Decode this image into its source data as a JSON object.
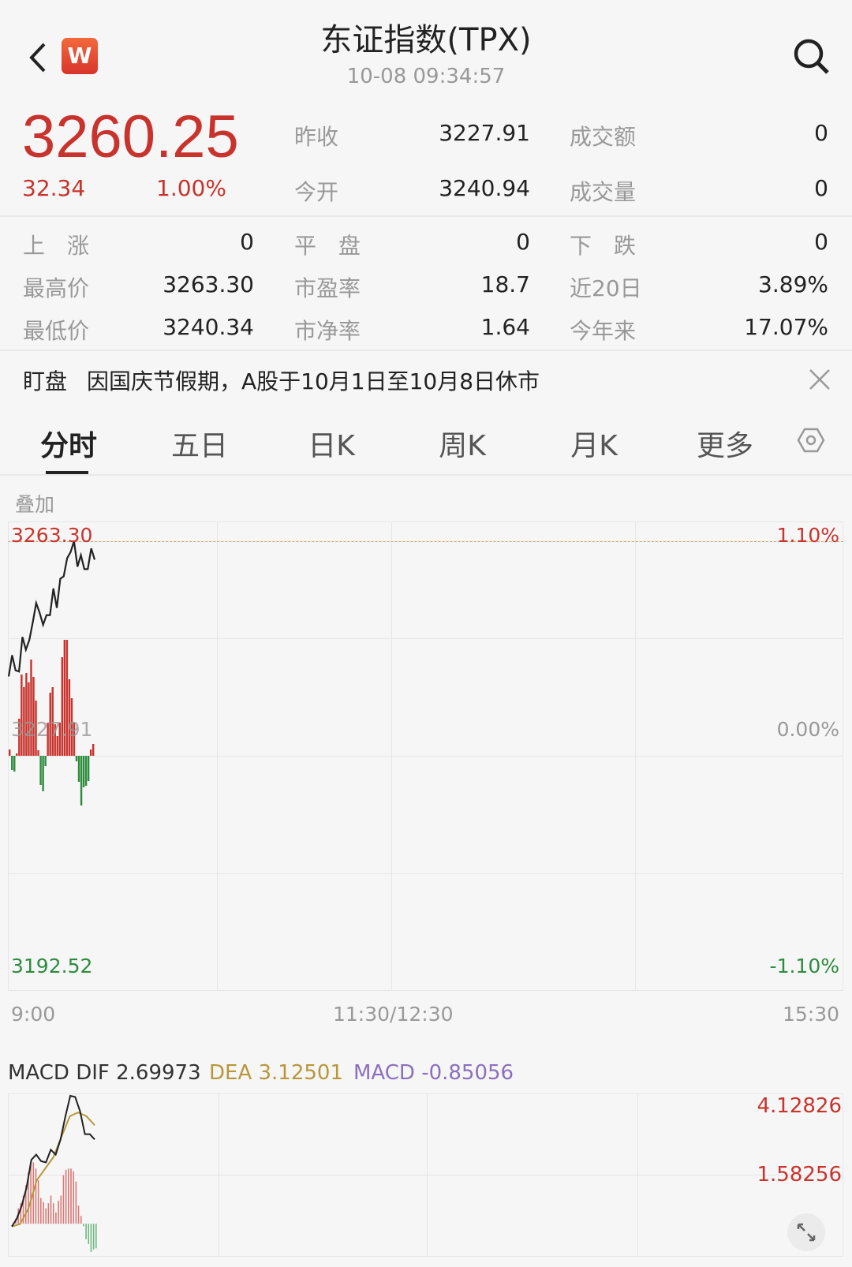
{
  "header": {
    "title": "东证指数(TPX)",
    "timestamp": "10-08 09:34:57",
    "logo": "W",
    "icons": [
      "back-arrow-icon",
      "search-icon"
    ]
  },
  "quote": {
    "price": "3260.25",
    "change": "32.34",
    "change_pct": "1.00%",
    "top_stats": [
      {
        "label": "昨收",
        "value": "3227.91"
      },
      {
        "label": "成交额",
        "value": "0"
      },
      {
        "label": "今开",
        "value": "3240.94"
      },
      {
        "label": "成交量",
        "value": "0"
      }
    ],
    "stats": [
      {
        "label": "上　涨",
        "value": "0"
      },
      {
        "label": "平　盘",
        "value": "0"
      },
      {
        "label": "下　跌",
        "value": "0"
      },
      {
        "label": "最高价",
        "value": "3263.30"
      },
      {
        "label": "市盈率",
        "value": "18.7"
      },
      {
        "label": "近20日",
        "value": "3.89%"
      },
      {
        "label": "最低价",
        "value": "3240.34"
      },
      {
        "label": "市净率",
        "value": "1.64"
      },
      {
        "label": "今年来",
        "value": "17.07%"
      }
    ]
  },
  "notice": {
    "tag": "盯盘",
    "text": "因国庆节假期，A股于10月1日至10月8日休市"
  },
  "tabs": [
    {
      "label": "分时",
      "active": true
    },
    {
      "label": "五日"
    },
    {
      "label": "日K"
    },
    {
      "label": "周K"
    },
    {
      "label": "月K"
    },
    {
      "label": "更多"
    }
  ],
  "overlay_label": "叠加",
  "colors": {
    "up": "#c8342d",
    "down": "#2e8b3e",
    "dea": "#b8963a",
    "macd": "#8a6fc0"
  },
  "chart_data": [
    {
      "type": "line",
      "name": "intraday",
      "y_labels": {
        "high": "3263.30",
        "mid": "3227.91",
        "low": "3192.52",
        "high_pct": "1.10%",
        "mid_pct": "0.00%",
        "low_pct": "-1.10%"
      },
      "x_ticks": [
        "9:00",
        "11:30/12:30",
        "15:30"
      ],
      "ylim": [
        3192.52,
        3263.3
      ],
      "price": [
        3241.0,
        3244.5,
        3242.0,
        3241.8,
        3247.5,
        3245.4,
        3247.0,
        3249.9,
        3253.1,
        3251.5,
        3249.5,
        3251.1,
        3251.1,
        3255.5,
        3252.3,
        3257.1,
        3257.5,
        3260.5,
        3261.5,
        3263.3,
        3259.1,
        3261.0,
        3258.7,
        3258.7,
        3262.1,
        3260.25
      ],
      "strength_bars": [
        8,
        -18,
        -20,
        3,
        47,
        103,
        87,
        105,
        93,
        122,
        100,
        70,
        7,
        -37,
        -45,
        -13,
        42,
        80,
        87,
        40,
        25,
        42,
        125,
        147,
        147,
        97,
        73,
        42,
        -7,
        -33,
        -63,
        -40,
        -38,
        -32,
        8,
        15
      ]
    },
    {
      "type": "line",
      "name": "MACD",
      "legend": {
        "dif": "MACD DIF 2.69973",
        "dea": "DEA 3.12501",
        "macd": "MACD -0.85056"
      },
      "y_labels": [
        "4.12826",
        "1.58256"
      ],
      "ylim_top": 4.12826,
      "dif": [
        -0.09,
        0.16,
        0.57,
        1.15,
        2.06,
        2.23,
        2.02,
        1.98,
        2.39,
        2.23,
        2.72,
        3.47,
        4.13,
        4.09,
        3.63,
        2.89,
        2.89,
        2.72
      ],
      "dea": [
        -0.09,
        -0.01,
        0.49,
        1.4,
        1.77,
        2.14,
        2.81,
        3.47,
        3.59,
        3.47,
        3.18
      ],
      "macd": [
        0.17,
        0.5,
        0.66,
        0.91,
        1.24,
        1.65,
        1.9,
        1.98,
        1.78,
        1.4,
        0.83,
        0.7,
        0.5,
        0.66,
        0.91,
        0.66,
        0.37,
        0.74,
        0.91,
        1.57,
        1.74,
        1.78,
        1.78,
        1.69,
        1.36,
        0.58,
        0.25,
        -0.08,
        -0.5,
        -0.66,
        -0.91,
        -0.83,
        -0.79
      ]
    }
  ]
}
